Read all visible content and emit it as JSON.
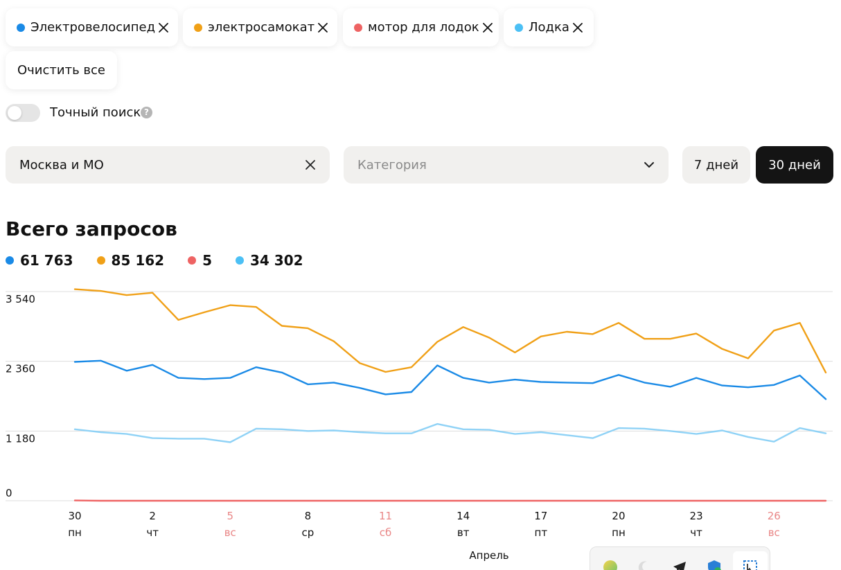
{
  "chips": [
    {
      "label": "Электровелосипед",
      "color": "#1a8ae6"
    },
    {
      "label": "электросамокат",
      "color": "#f0a017"
    },
    {
      "label": "мотор для лодок",
      "color": "#ee6363"
    },
    {
      "label": "Лодка",
      "color": "#4cc0f5"
    }
  ],
  "clear_all_label": "Очистить все",
  "exact_search": {
    "label": "Точный поиск",
    "enabled": false,
    "help_icon": "?"
  },
  "region": {
    "value": "Москва и МО"
  },
  "category": {
    "placeholder": "Категория"
  },
  "period": {
    "options": [
      "7 дней",
      "30 дней"
    ],
    "selected": "30 дней"
  },
  "section_title": "Всего запросов",
  "totals": [
    {
      "value": "61 763",
      "color": "#1a8ae6"
    },
    {
      "value": "85 162",
      "color": "#f0a017"
    },
    {
      "value": "5",
      "color": "#ee6363"
    },
    {
      "value": "34 302",
      "color": "#4cc0f5"
    }
  ],
  "chart_data": {
    "type": "line",
    "y_ticks": [
      {
        "value": 3540,
        "label": "3 540"
      },
      {
        "value": 2360,
        "label": "2 360"
      },
      {
        "value": 1180,
        "label": "1 180"
      },
      {
        "value": 0,
        "label": "0"
      }
    ],
    "ylim": [
      0,
      3540
    ],
    "x_ticks": [
      {
        "index": 0,
        "day": "30",
        "weekday": "пн",
        "weekend": false
      },
      {
        "index": 3,
        "day": "2",
        "weekday": "чт",
        "weekend": false
      },
      {
        "index": 6,
        "day": "5",
        "weekday": "вс",
        "weekend": true
      },
      {
        "index": 9,
        "day": "8",
        "weekday": "ср",
        "weekend": false
      },
      {
        "index": 12,
        "day": "11",
        "weekday": "сб",
        "weekend": true
      },
      {
        "index": 15,
        "day": "14",
        "weekday": "вт",
        "weekend": false
      },
      {
        "index": 18,
        "day": "17",
        "weekday": "пт",
        "weekend": false
      },
      {
        "index": 21,
        "day": "20",
        "weekday": "пн",
        "weekend": false
      },
      {
        "index": 24,
        "day": "23",
        "weekday": "чт",
        "weekend": false
      },
      {
        "index": 27,
        "day": "26",
        "weekday": "вс",
        "weekend": true
      }
    ],
    "xlabel": "Апрель",
    "series": [
      {
        "color": "#1a8ae6",
        "values": [
          2350,
          2370,
          2200,
          2300,
          2080,
          2060,
          2080,
          2260,
          2170,
          1970,
          2000,
          1910,
          1800,
          1840,
          2290,
          2080,
          2000,
          2050,
          2010,
          2000,
          1990,
          2130,
          2000,
          1930,
          2080,
          1950,
          1920,
          1960,
          2120,
          1720
        ]
      },
      {
        "color": "#f0a017",
        "values": [
          3580,
          3550,
          3480,
          3520,
          3060,
          3190,
          3310,
          3280,
          2960,
          2920,
          2700,
          2330,
          2180,
          2260,
          2690,
          2940,
          2760,
          2510,
          2780,
          2860,
          2820,
          3010,
          2740,
          2740,
          2830,
          2570,
          2410,
          2880,
          3010,
          2170
        ]
      },
      {
        "color": "#ee6363",
        "values": [
          5,
          0,
          0,
          0,
          0,
          0,
          0,
          0,
          0,
          0,
          0,
          0,
          0,
          0,
          0,
          0,
          0,
          0,
          0,
          0,
          0,
          0,
          0,
          0,
          0,
          0,
          0,
          0,
          0,
          0
        ]
      },
      {
        "color": "#8fd2f6",
        "values": [
          1210,
          1160,
          1130,
          1060,
          1050,
          1050,
          990,
          1220,
          1210,
          1180,
          1190,
          1160,
          1140,
          1140,
          1300,
          1210,
          1200,
          1130,
          1160,
          1110,
          1060,
          1230,
          1220,
          1180,
          1130,
          1190,
          1080,
          1000,
          1230,
          1140
        ]
      }
    ]
  },
  "tray_icons": [
    "color-ball-icon",
    "moon-icon",
    "telegram-icon",
    "shield-check-icon",
    "screenshot-tool-icon"
  ]
}
